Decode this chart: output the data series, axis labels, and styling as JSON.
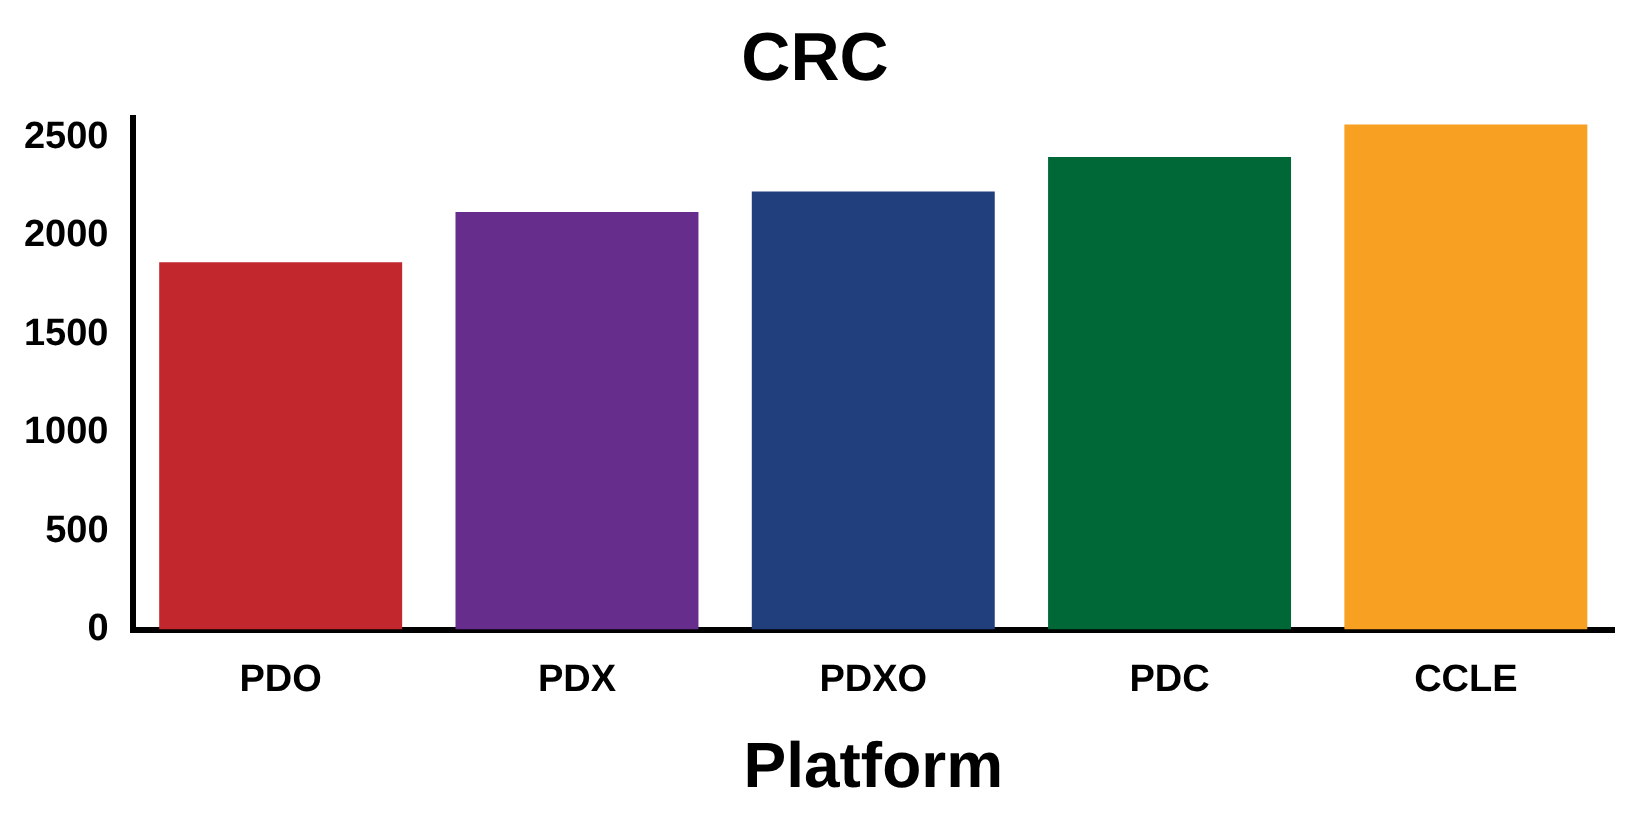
{
  "chart_data": {
    "type": "bar",
    "title": "CRC",
    "xlabel": "Platform",
    "categories": [
      "PDO",
      "PDX",
      "PDXO",
      "PDC",
      "CCLE"
    ],
    "values": [
      1865,
      2120,
      2225,
      2400,
      2565
    ],
    "colors": [
      "#c1272d",
      "#662d8c",
      "#213f7c",
      "#006837",
      "#f7a021"
    ],
    "ylim": [
      0,
      2600
    ],
    "yticks": [
      0,
      500,
      1000,
      1500,
      2000,
      2500
    ],
    "grid": false,
    "legend": false
  }
}
